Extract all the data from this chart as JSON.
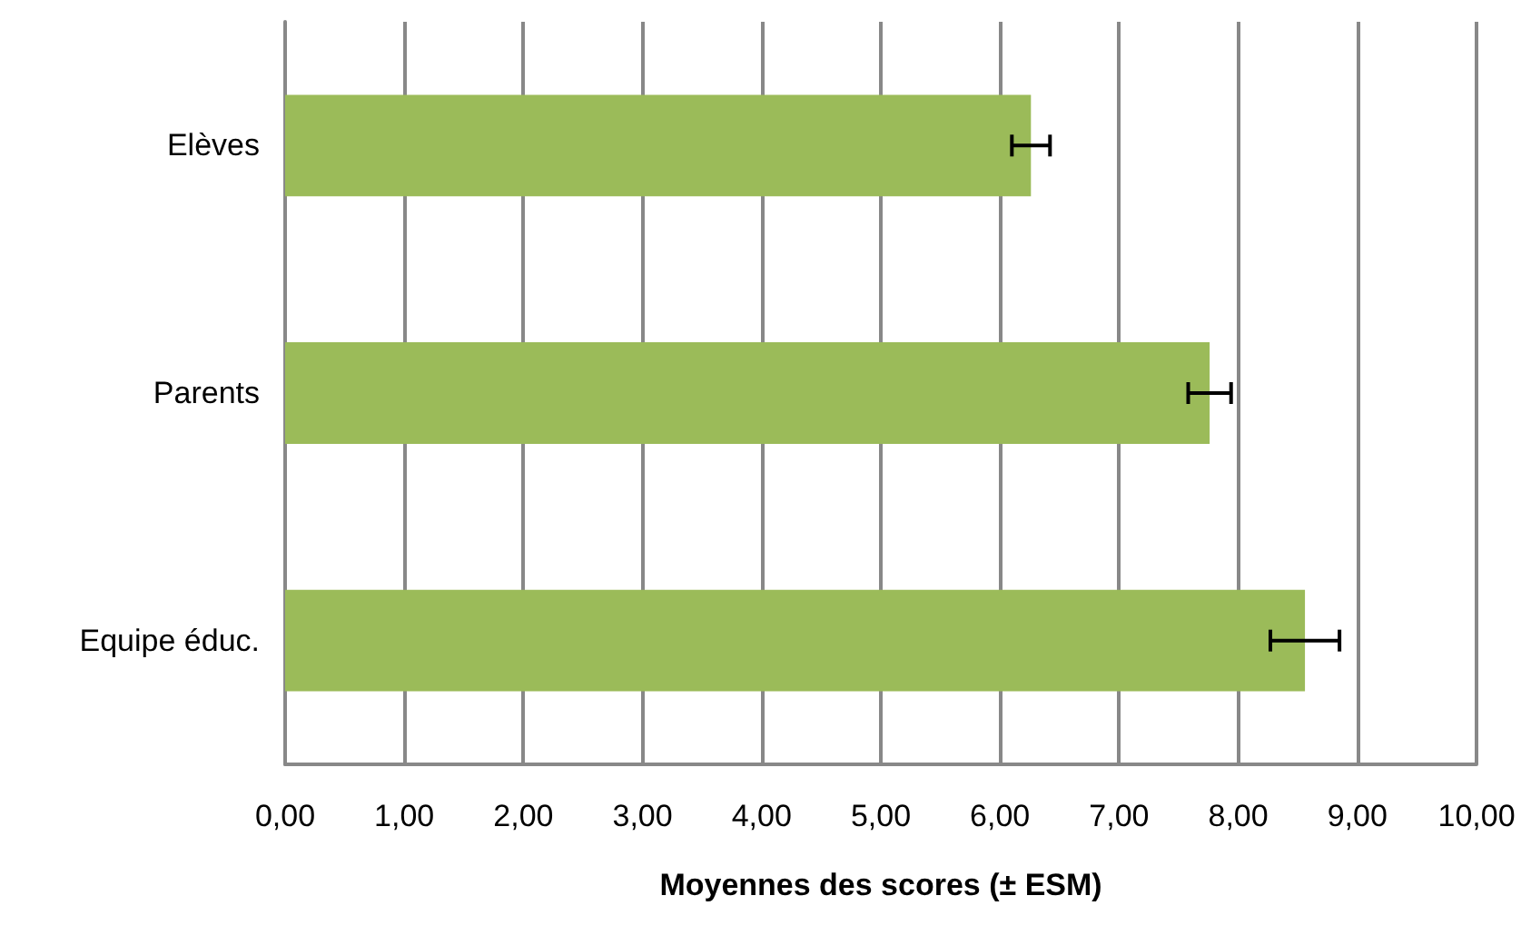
{
  "chart_data": {
    "type": "bar",
    "orientation": "horizontal",
    "xlabel": "Moyennes des scores (± ESM)",
    "categories": [
      "Elèves",
      "Parents",
      "Equipe éduc."
    ],
    "values": [
      6.26,
      7.76,
      8.56
    ],
    "errors": [
      0.16,
      0.18,
      0.29
    ],
    "color": "#9bbb59",
    "xlim": [
      0,
      10
    ],
    "xticks": [
      {
        "value": 0,
        "label": "0,00"
      },
      {
        "value": 1,
        "label": "1,00"
      },
      {
        "value": 2,
        "label": "2,00"
      },
      {
        "value": 3,
        "label": "3,00"
      },
      {
        "value": 4,
        "label": "4,00"
      },
      {
        "value": 5,
        "label": "5,00"
      },
      {
        "value": 6,
        "label": "6,00"
      },
      {
        "value": 7,
        "label": "7,00"
      },
      {
        "value": 8,
        "label": "8,00"
      },
      {
        "value": 9,
        "label": "9,00"
      },
      {
        "value": 10,
        "label": "10,00"
      }
    ],
    "grid": "x"
  }
}
